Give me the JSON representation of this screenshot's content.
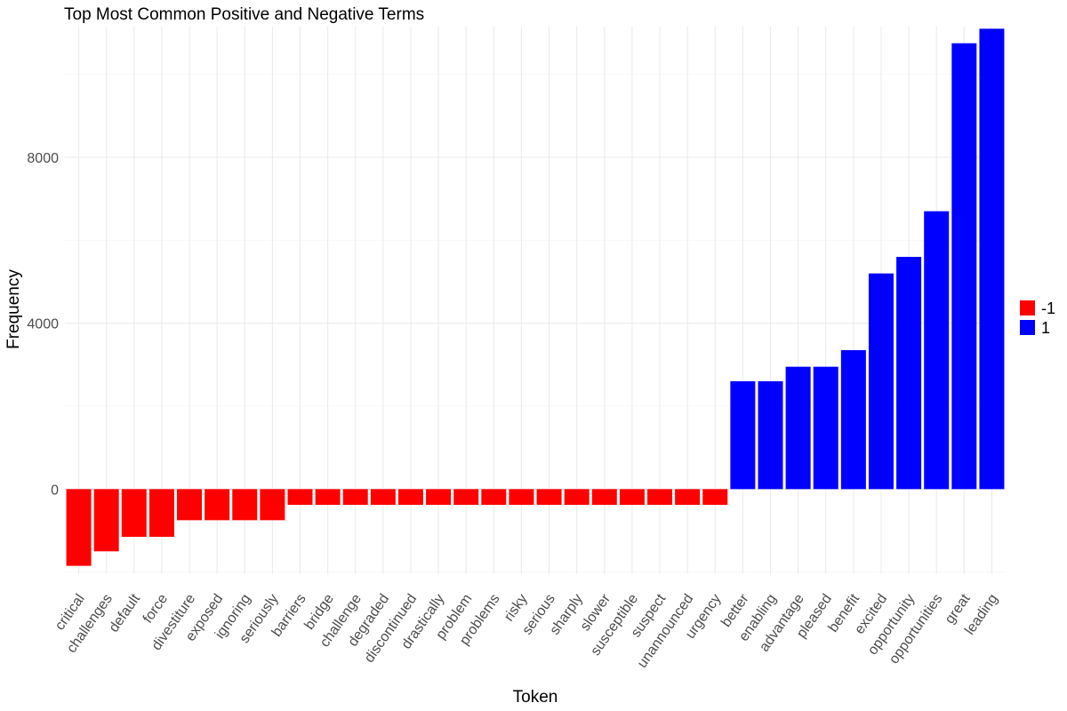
{
  "chart_data": {
    "type": "bar",
    "title": "Top Most Common Positive and Negative Terms",
    "xlabel": "Token",
    "ylabel": "Frequency",
    "ylim": [
      -2050,
      11150
    ],
    "yticks": [
      0,
      4000,
      8000
    ],
    "grid": true,
    "legend": {
      "position": "right",
      "entries": [
        {
          "label": "-1",
          "color": "#ff0000"
        },
        {
          "label": "1",
          "color": "#0000ff"
        }
      ]
    },
    "categories": [
      "critical",
      "challenges",
      "default",
      "force",
      "divestiture",
      "exposed",
      "ignoring",
      "seriously",
      "barriers",
      "bridge",
      "challenge",
      "degraded",
      "discontinued",
      "drastically",
      "problem",
      "problems",
      "risky",
      "serious",
      "sharply",
      "slower",
      "susceptible",
      "suspect",
      "unannounced",
      "urgency",
      "better",
      "enabling",
      "advantage",
      "pleased",
      "benefit",
      "excited",
      "opportunity",
      "opportunities",
      "great",
      "leading"
    ],
    "values": [
      -1850,
      -1500,
      -1150,
      -1150,
      -750,
      -750,
      -750,
      -750,
      -380,
      -380,
      -380,
      -380,
      -380,
      -380,
      -380,
      -380,
      -380,
      -380,
      -380,
      -380,
      -380,
      -380,
      -380,
      -380,
      2600,
      2600,
      2950,
      2950,
      3350,
      5200,
      5600,
      6700,
      10750,
      11100
    ],
    "groups": [
      "-1",
      "-1",
      "-1",
      "-1",
      "-1",
      "-1",
      "-1",
      "-1",
      "-1",
      "-1",
      "-1",
      "-1",
      "-1",
      "-1",
      "-1",
      "-1",
      "-1",
      "-1",
      "-1",
      "-1",
      "-1",
      "-1",
      "-1",
      "-1",
      "1",
      "1",
      "1",
      "1",
      "1",
      "1",
      "1",
      "1",
      "1",
      "1"
    ]
  }
}
